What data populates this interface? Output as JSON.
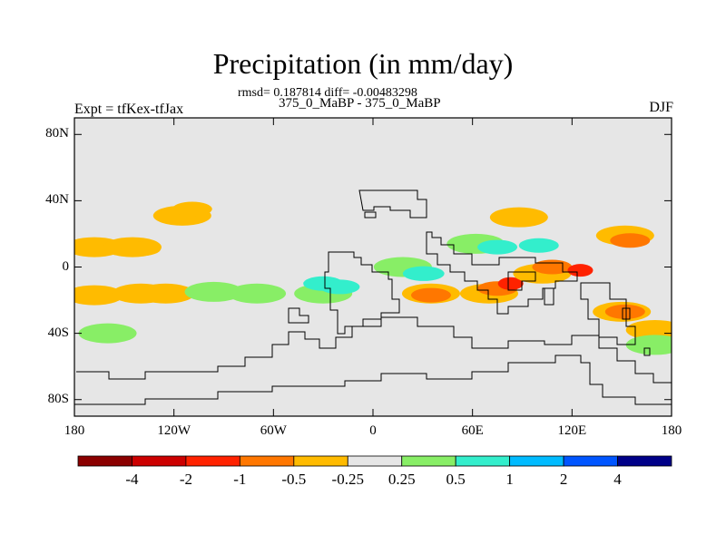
{
  "figure": {
    "title": "Precipitation (in mm/day)",
    "stats_line": "rmsd= 0.187814 diff= -0.00483298",
    "runs_line": "375_0_MaBP - 375_0_MaBP",
    "experiment_label": "Expt = tfKex-tfJax",
    "season_label": "DJF"
  },
  "axes": {
    "lat_ticks": [
      "80N",
      "40N",
      "0",
      "40S",
      "80S"
    ],
    "lon_ticks": [
      "180",
      "120W",
      "60W",
      "0",
      "60E",
      "120E",
      "180"
    ],
    "background_color": "#e6e6e6"
  },
  "colorbar": {
    "colors": [
      "#8b0000",
      "#cc0000",
      "#ff2200",
      "#ff7700",
      "#ffbb00",
      "#e6e6e6",
      "#88ee66",
      "#33eecc",
      "#00bbff",
      "#0055ff",
      "#000088"
    ],
    "labels": [
      "-4",
      "-2",
      "-1",
      "-0.5",
      "-0.25",
      "0.25",
      "0.5",
      "1",
      "2",
      "4"
    ]
  },
  "chart_data": {
    "type": "heatmap",
    "title": "Precipitation (in mm/day)",
    "xlabel": "",
    "ylabel": "",
    "xlim": [
      -180,
      180
    ],
    "ylim": [
      -90,
      90
    ],
    "x_ticks": [
      "180",
      "120W",
      "60W",
      "0",
      "60E",
      "120E",
      "180"
    ],
    "y_ticks": [
      "80N",
      "40N",
      "0",
      "40S",
      "80S"
    ],
    "levels": [
      -4,
      -2,
      -1,
      -0.5,
      -0.25,
      0.25,
      0.5,
      1,
      2,
      4
    ],
    "anomalies": [
      {
        "lon": -168,
        "lat": 12,
        "value": -0.3
      },
      {
        "lon": -145,
        "lat": 12,
        "value": -0.3
      },
      {
        "lon": -140,
        "lat": 11,
        "value": -0.5
      },
      {
        "lon": -115,
        "lat": 31,
        "value": -0.3
      },
      {
        "lon": -109,
        "lat": 35,
        "value": -0.5
      },
      {
        "lon": -168,
        "lat": -17,
        "value": -0.3
      },
      {
        "lon": -140,
        "lat": -16,
        "value": -0.3
      },
      {
        "lon": -125,
        "lat": -16,
        "value": -0.3
      },
      {
        "lon": -160,
        "lat": -40,
        "value": 0.3
      },
      {
        "lon": -96,
        "lat": -15,
        "value": 0.3
      },
      {
        "lon": -70,
        "lat": -16,
        "value": 0.3
      },
      {
        "lon": -30,
        "lat": -16,
        "value": 0.3
      },
      {
        "lon": -30,
        "lat": -10,
        "value": 0.5
      },
      {
        "lon": -20,
        "lat": -12,
        "value": 0.7
      },
      {
        "lon": 18,
        "lat": 0,
        "value": 0.3
      },
      {
        "lon": 30,
        "lat": -4,
        "value": 0.5
      },
      {
        "lon": 31,
        "lat": -4,
        "value": 0.7
      },
      {
        "lon": 35,
        "lat": -16,
        "value": -0.3
      },
      {
        "lon": 35,
        "lat": -17,
        "value": -0.6
      },
      {
        "lon": 62,
        "lat": 14,
        "value": 0.3
      },
      {
        "lon": 75,
        "lat": 12,
        "value": 0.7
      },
      {
        "lon": 100,
        "lat": 13,
        "value": 0.7
      },
      {
        "lon": 70,
        "lat": -16,
        "value": -0.3
      },
      {
        "lon": 75,
        "lat": -13,
        "value": -0.6
      },
      {
        "lon": 83,
        "lat": -10,
        "value": -1.2
      },
      {
        "lon": 102,
        "lat": -4,
        "value": -0.3
      },
      {
        "lon": 108,
        "lat": 0,
        "value": -0.6
      },
      {
        "lon": 125,
        "lat": -2,
        "value": -1.2
      },
      {
        "lon": 88,
        "lat": 30,
        "value": -0.3
      },
      {
        "lon": 152,
        "lat": 19,
        "value": -0.3
      },
      {
        "lon": 155,
        "lat": 16,
        "value": -0.7
      },
      {
        "lon": 150,
        "lat": -27,
        "value": -0.3
      },
      {
        "lon": 152,
        "lat": -27,
        "value": -0.7
      },
      {
        "lon": 170,
        "lat": -38,
        "value": -0.3
      },
      {
        "lon": 170,
        "lat": -47,
        "value": 0.3
      }
    ]
  }
}
